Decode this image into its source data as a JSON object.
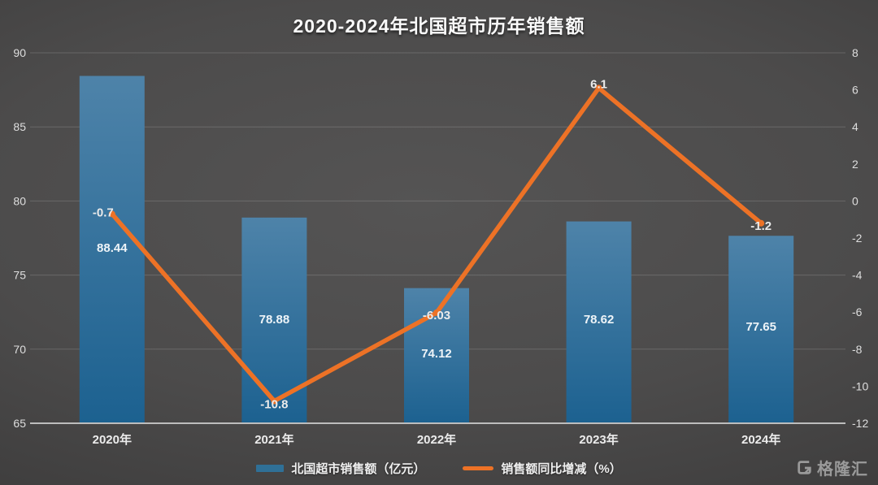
{
  "title": "2020-2024年北国超市历年销售额",
  "watermark": {
    "text": "格隆汇"
  },
  "colors": {
    "bar_top": "#4e83a9",
    "bar_bottom": "#1c6190",
    "line": "#ed7226",
    "grid": "rgba(255,255,255,0.16)",
    "axis_line": "#bdbdbd",
    "tick_label": "#dedede",
    "bar_value_label": "#eef4f8",
    "line_value_label": "#ebebeb",
    "legend_bar_swatch": "#2f7097",
    "legend_line_swatch": "#ed7226"
  },
  "chart_data": {
    "type": "combo-bar-line",
    "title": "2020-2024年北国超市历年销售额",
    "categories": [
      "2020年",
      "2021年",
      "2022年",
      "2023年",
      "2024年"
    ],
    "series": [
      {
        "name": "北国超市销售额（亿元）",
        "type": "bar",
        "axis": "left",
        "values": [
          88.44,
          78.88,
          74.12,
          78.62,
          77.65
        ],
        "labels": [
          "88.44",
          "78.88",
          "74.12",
          "78.62",
          "77.65"
        ]
      },
      {
        "name": "销售额同比增减（%）",
        "type": "line",
        "axis": "right",
        "values": [
          -0.7,
          -10.8,
          -6.03,
          6.1,
          -1.2
        ],
        "labels": [
          "-0.7",
          "-10.8",
          "-6.03",
          "6.1",
          "-1.2"
        ]
      }
    ],
    "left_axis": {
      "min": 65,
      "max": 90,
      "step": 5,
      "ticks": [
        65,
        70,
        75,
        80,
        85,
        90
      ]
    },
    "right_axis": {
      "min": -12,
      "max": 8,
      "step": 2,
      "ticks": [
        -12,
        -10,
        -8,
        -6,
        -4,
        -2,
        0,
        2,
        4,
        6,
        8
      ]
    },
    "grid": true,
    "legend_position": "bottom"
  }
}
